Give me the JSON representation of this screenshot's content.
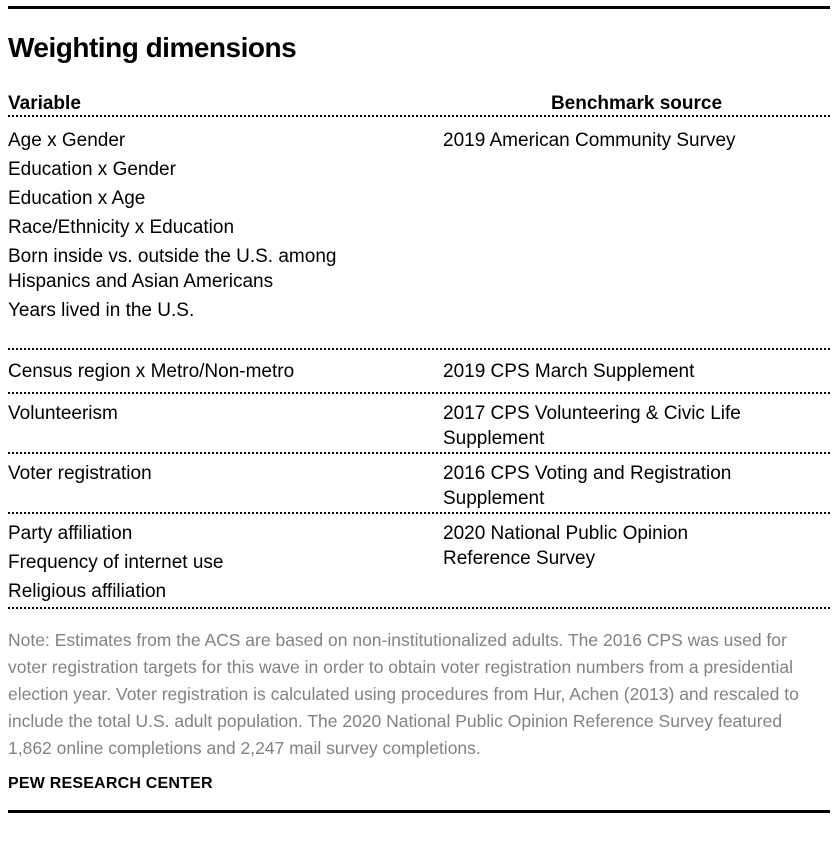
{
  "chart_data": {
    "type": "table",
    "title": "Weighting dimensions",
    "columns": {
      "variable": "Variable",
      "benchmark": "Benchmark source"
    },
    "groups": [
      {
        "variables": [
          "Age x Gender",
          "Education x Gender",
          "Education x Age",
          "Race/Ethnicity x Education",
          "Born inside vs. outside the U.S. among\nHispanics and Asian Americans",
          "Years lived in the U.S."
        ],
        "benchmark": "2019 American Community Survey"
      },
      {
        "variables": [
          "Census region x Metro/Non-metro"
        ],
        "benchmark": "2019 CPS March Supplement"
      },
      {
        "variables": [
          "Volunteerism"
        ],
        "benchmark": "2017 CPS Volunteering & Civic Life\nSupplement"
      },
      {
        "variables": [
          "Voter registration"
        ],
        "benchmark": "2016 CPS Voting and Registration\nSupplement"
      },
      {
        "variables": [
          "Party affiliation",
          "Frequency of internet use",
          "Religious affiliation"
        ],
        "benchmark": "2020 National Public Opinion\nReference Survey"
      }
    ],
    "note": "Note: Estimates from the ACS are based on non-institutionalized adults.  The 2016 CPS was used for voter registration targets for this wave in order to obtain voter registration numbers from a presidential election year. Voter registration is calculated using procedures from Hur, Achen (2013) and rescaled to include the total U.S. adult population. The 2020 National Public Opinion Reference Survey featured 1,862 online completions and 2,247 mail survey completions.",
    "source": "PEW RESEARCH CENTER"
  },
  "colors": {
    "text": "#000000",
    "note_text": "#808285",
    "rule": "#000000"
  }
}
